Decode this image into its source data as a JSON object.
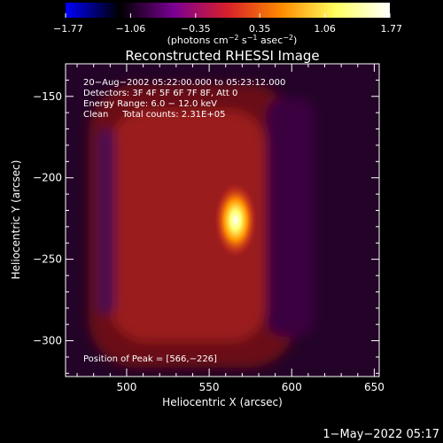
{
  "chart_data": {
    "type": "heatmap",
    "title": "Reconstructed RHESSI Image",
    "xlabel": "Heliocentric X (arcsec)",
    "ylabel": "Heliocentric Y (arcsec)",
    "xlim": [
      463,
      653
    ],
    "ylim": [
      -322,
      -130
    ],
    "x_ticks": [
      500,
      550,
      600,
      650
    ],
    "x_tick_labels": [
      "500",
      "550",
      "600",
      "650"
    ],
    "y_ticks": [
      -150,
      -200,
      -250,
      -300
    ],
    "y_tick_labels": [
      "−150",
      "−200",
      "−250",
      "−300"
    ],
    "colorbar": {
      "range": [
        -1.77,
        1.77
      ],
      "ticks": [
        -1.77,
        -1.06,
        -0.35,
        0.35,
        1.06,
        1.77
      ],
      "tick_labels": [
        "−1.77",
        "−1.06",
        "−0.35",
        "0.35",
        "1.06",
        "1.77"
      ],
      "units_prefix": "(photons cm",
      "units_exp1": "−2",
      "units_mid1": " s",
      "units_exp2": "−1",
      "units_mid2": " asec",
      "units_exp3": "−2",
      "units_suffix": ")",
      "colors": [
        "#0000ff",
        "#000000",
        "#7a0094",
        "#d8202a",
        "#ff8c00",
        "#ffff60",
        "#ffffff"
      ]
    },
    "annotations": [
      "20−Aug−2002 05:22:00.000 to 05:23:12.000",
      "Detectors: 3F 4F 5F 6F 7F 8F, Att 0",
      "Energy Range: 6.0 − 12.0 keV",
      "Clean     Total counts: 2.31E+05"
    ],
    "peak_label": "Position of Peak = [566,−226]",
    "peak": {
      "x": 566,
      "y": -226,
      "value": 1.77
    },
    "source_region": {
      "x_range": [
        480,
        620
      ],
      "y_range": [
        -320,
        -135
      ],
      "value": 0.6
    },
    "background_value": -0.3
  },
  "footer": {
    "timestamp": "1−May−2022 05:17"
  }
}
